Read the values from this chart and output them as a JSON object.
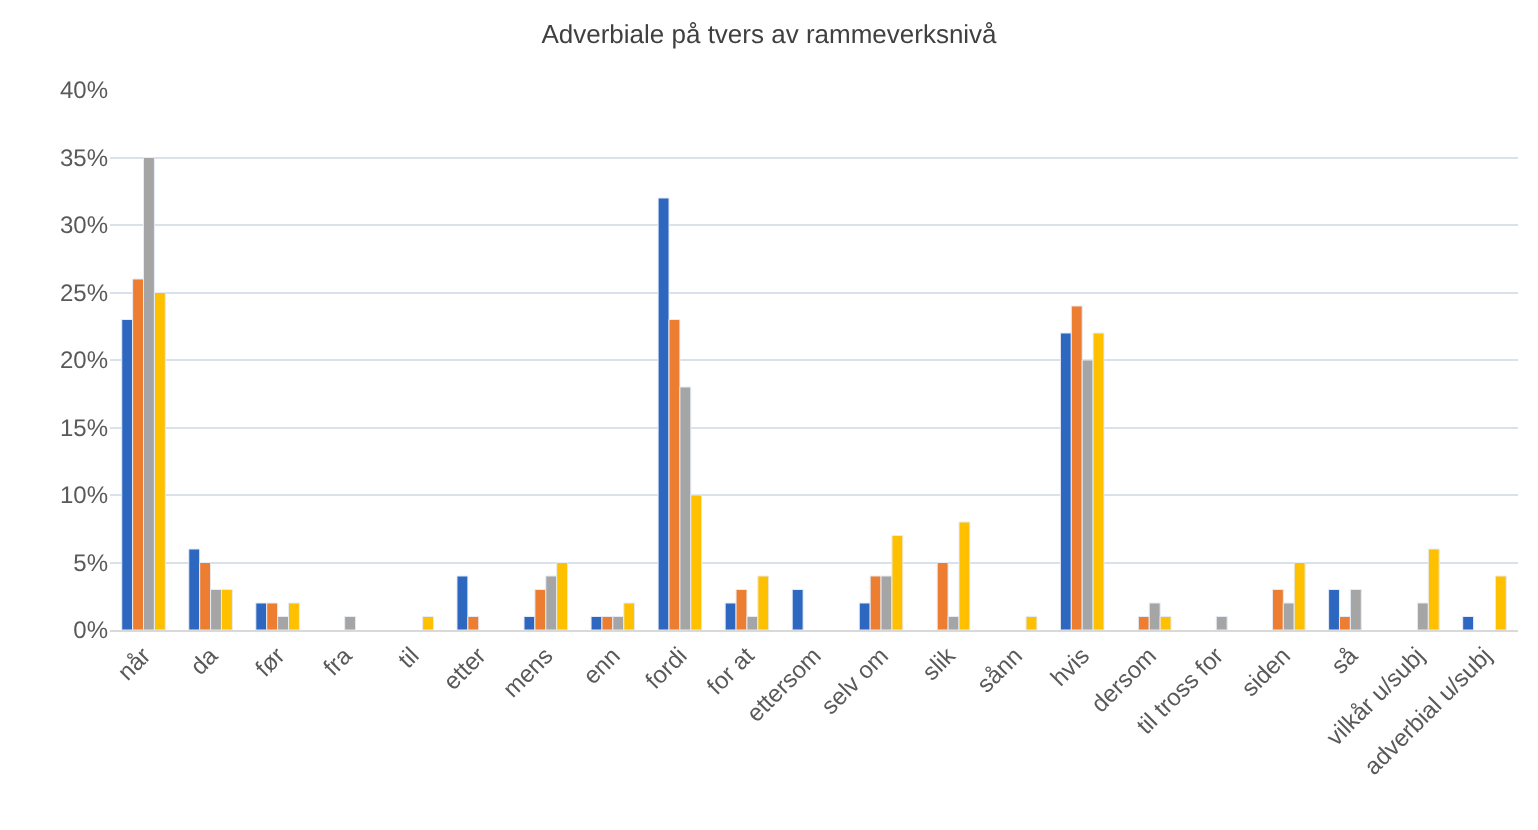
{
  "chart_data": {
    "type": "bar",
    "title": "Adverbiale på tvers av rammeverksnivå",
    "categories": [
      "når",
      "da",
      "før",
      "fra",
      "til",
      "etter",
      "mens",
      "enn",
      "fordi",
      "for at",
      "ettersom",
      "selv om",
      "slik",
      "sånn",
      "hvis",
      "dersom",
      "til tross for",
      "siden",
      "så",
      "vilkår u/subj",
      "adverbial u/subj"
    ],
    "series": [
      {
        "color": "#2e67c0",
        "values": [
          23,
          6,
          2,
          null,
          null,
          4,
          1,
          1,
          32,
          2,
          3,
          2,
          null,
          null,
          22,
          null,
          null,
          null,
          3,
          null,
          1
        ]
      },
      {
        "color": "#ed7d31",
        "values": [
          26,
          5,
          2,
          null,
          null,
          1,
          3,
          1,
          23,
          3,
          null,
          4,
          5,
          null,
          24,
          1,
          null,
          3,
          1,
          null,
          null
        ]
      },
      {
        "color": "#a5a5a5",
        "values": [
          35,
          3,
          1,
          1,
          null,
          null,
          4,
          1,
          18,
          1,
          null,
          4,
          1,
          null,
          20,
          2,
          1,
          2,
          3,
          2,
          null
        ]
      },
      {
        "color": "#ffc000",
        "values": [
          25,
          3,
          2,
          null,
          1,
          null,
          5,
          2,
          10,
          4,
          null,
          7,
          8,
          1,
          22,
          1,
          null,
          5,
          null,
          6,
          4
        ]
      }
    ],
    "ylim": [
      0,
      40
    ],
    "yticks": [
      {
        "value": 0,
        "label": "0%"
      },
      {
        "value": 5,
        "label": "5%"
      },
      {
        "value": 10,
        "label": "10%"
      },
      {
        "value": 15,
        "label": "15%"
      },
      {
        "value": 20,
        "label": "20%"
      },
      {
        "value": 25,
        "label": "25%"
      },
      {
        "value": 30,
        "label": "30%"
      },
      {
        "value": 35,
        "label": "35%"
      },
      {
        "value": 40,
        "label": "40%"
      }
    ],
    "grid": "y"
  }
}
